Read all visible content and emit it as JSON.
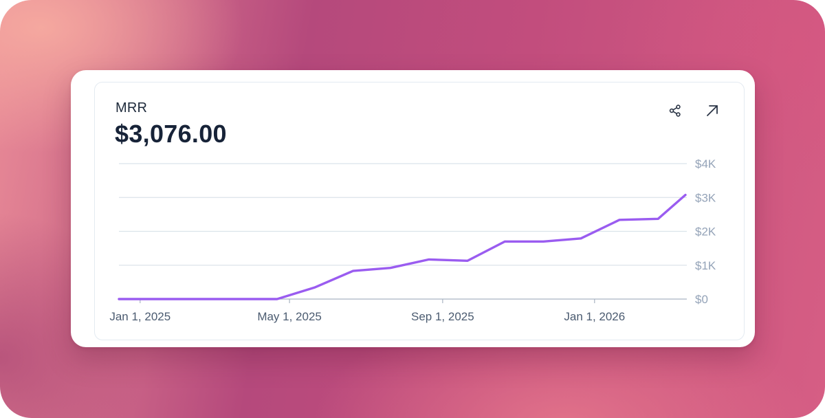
{
  "card": {
    "metric_label": "MRR",
    "metric_value": "$3,076.00"
  },
  "icons": {
    "share": "share-icon",
    "expand": "arrow-up-right-icon"
  },
  "colors": {
    "line": "#9a5cf0",
    "grid": "#dbe3ea",
    "axis_text": "#94a3b8",
    "date_text": "#4b5b70",
    "title_text": "#172338"
  },
  "chart_data": {
    "type": "line",
    "title": "",
    "xlabel": "",
    "ylabel": "",
    "x_tick_labels": [
      "Jan 1, 2025",
      "May 1, 2025",
      "Sep 1, 2025",
      "Jan 1, 2026"
    ],
    "y_tick_labels": [
      "$0",
      "$1K",
      "$2K",
      "$3K",
      "$4K"
    ],
    "ylim": [
      0,
      4000
    ],
    "xlim": [
      "2024-12-15",
      "2026-03-15"
    ],
    "grid": "horizontal",
    "legend": "none",
    "series": [
      {
        "x": [
          "2024-12-15",
          "2025-04-21",
          "2025-05-21",
          "2025-06-21",
          "2025-07-21",
          "2025-08-21",
          "2025-09-21",
          "2025-10-21",
          "2025-11-21",
          "2025-12-21",
          "2026-01-21",
          "2026-02-21",
          "2026-03-15"
        ],
        "y": [
          0,
          0,
          340,
          830,
          920,
          1170,
          1130,
          1700,
          1700,
          1790,
          2340,
          2370,
          3076
        ]
      }
    ]
  }
}
